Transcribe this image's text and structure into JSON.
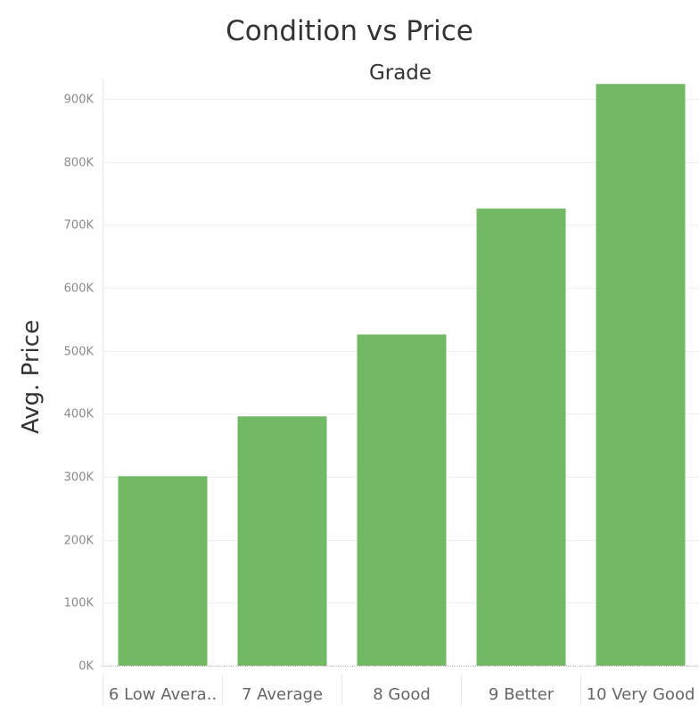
{
  "chart_data": {
    "type": "bar",
    "title": "Condition vs Price",
    "column_header": "Grade",
    "ylabel": "Avg. Price",
    "xlabel": "",
    "categories": [
      "6 Low Avera..",
      "7 Average",
      "8 Good",
      "9 Better",
      "10 Very Good"
    ],
    "values": [
      301000,
      396000,
      526000,
      726000,
      924000
    ],
    "ylim": [
      0,
      930000
    ],
    "yticks": [
      0,
      100000,
      200000,
      300000,
      400000,
      500000,
      600000,
      700000,
      800000,
      900000
    ],
    "ytick_labels": [
      "0K",
      "100K",
      "200K",
      "300K",
      "400K",
      "500K",
      "600K",
      "700K",
      "800K",
      "900K"
    ],
    "grid": true,
    "legend": "none",
    "bar_color": "#71b964",
    "gridline_color": "#eeeeee"
  }
}
